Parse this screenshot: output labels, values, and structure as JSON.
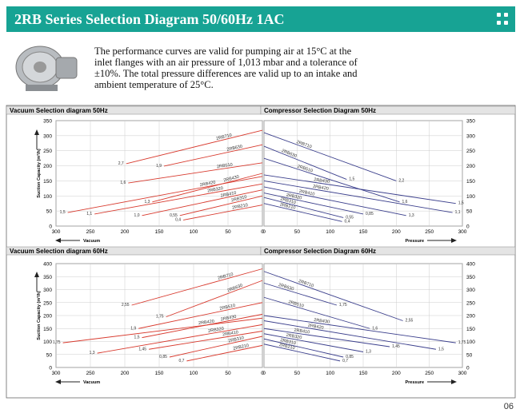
{
  "header": {
    "title": "2RB Series Selection Diagram 50/60Hz 1AC"
  },
  "intro": "The performance curves are valid for pumping air at 15°C at the inlet flanges with an air pressure of 1,013 mbar and a tolerance of ±10%. The total pressure differences are valid up to an intake and ambient temperature of 25°C.",
  "page_number": "06",
  "chart_data": [
    {
      "type": "line",
      "title": "Vacuum Selection diagram 50Hz",
      "ylabel": "Suction Capacity (m³/h)",
      "xlabel": "Vacuum",
      "color": "#d83a2e",
      "xlim": [
        300,
        0
      ],
      "ylim": [
        0,
        350
      ],
      "xticks": [
        300,
        250,
        200,
        150,
        100,
        50,
        0
      ],
      "yticks": [
        0,
        50,
        100,
        150,
        200,
        250,
        300,
        350
      ],
      "grid": true,
      "series": [
        {
          "name": "2RB710",
          "start_label": "2,7",
          "x": [
            198,
            0
          ],
          "values": [
            207,
            318
          ]
        },
        {
          "name": "2RB630",
          "start_label": "1,9",
          "x": [
            143,
            0
          ],
          "values": [
            199,
            270
          ]
        },
        {
          "name": "2RB510",
          "start_label": "1,6",
          "x": [
            195,
            0
          ],
          "values": [
            143,
            210
          ]
        },
        {
          "name": "2RB430",
          "start_label": "1,3",
          "x": [
            160,
            0
          ],
          "values": [
            80,
            175
          ]
        },
        {
          "name": "2RB420",
          "start_label": "1,5",
          "x": [
            283,
            0
          ],
          "values": [
            45,
            165
          ]
        },
        {
          "name": "2RB320",
          "start_label": "1,1",
          "x": [
            244,
            0
          ],
          "values": [
            40,
            140
          ]
        },
        {
          "name": "2RB410",
          "start_label": "1,0",
          "x": [
            175,
            0
          ],
          "values": [
            35,
            120
          ]
        },
        {
          "name": "2RB310",
          "start_label": "0,55",
          "x": [
            120,
            0
          ],
          "values": [
            35,
            100
          ]
        },
        {
          "name": "2RB210",
          "start_label": "0,4",
          "x": [
            115,
            0
          ],
          "values": [
            20,
            70
          ]
        }
      ]
    },
    {
      "type": "line",
      "title": "Compressor Selection Diagram 50Hz",
      "xlabel": "Pressure",
      "color": "#3b3f8c",
      "xlim": [
        0,
        300
      ],
      "ylim": [
        0,
        350
      ],
      "xticks": [
        0,
        50,
        100,
        150,
        200,
        250,
        300
      ],
      "yticks": [
        0,
        50,
        100,
        150,
        200,
        250,
        300,
        350
      ],
      "grid": true,
      "series": [
        {
          "name": "2RB710",
          "start_label": "2,2",
          "x": [
            0,
            200
          ],
          "values": [
            310,
            150
          ]
        },
        {
          "name": "2RB630",
          "start_label": "1,5",
          "x": [
            0,
            125
          ],
          "values": [
            265,
            155
          ]
        },
        {
          "name": "2RB510",
          "start_label": "1,6",
          "x": [
            0,
            205
          ],
          "values": [
            225,
            80
          ]
        },
        {
          "name": "2RB430",
          "start_label": "1,5",
          "x": [
            0,
            290
          ],
          "values": [
            170,
            75
          ]
        },
        {
          "name": "2RB420",
          "start_label": "1,1",
          "x": [
            0,
            285
          ],
          "values": [
            150,
            45
          ]
        },
        {
          "name": "2RB410",
          "start_label": "1,3",
          "x": [
            0,
            215
          ],
          "values": [
            130,
            35
          ]
        },
        {
          "name": "2RB320",
          "start_label": "0,85",
          "x": [
            0,
            150
          ],
          "values": [
            110,
            40
          ]
        },
        {
          "name": "2RB310",
          "start_label": "0,55",
          "x": [
            0,
            120
          ],
          "values": [
            95,
            28
          ]
        },
        {
          "name": "2RB210",
          "start_label": "0,4",
          "x": [
            0,
            118
          ],
          "values": [
            75,
            15
          ]
        }
      ]
    },
    {
      "type": "line",
      "title": "Vacuum Selection diagram 60Hz",
      "ylabel": "Suction Capacity (m³/h)",
      "xlabel": "Vacuum",
      "color": "#d83a2e",
      "xlim": [
        300,
        0
      ],
      "ylim": [
        0,
        400
      ],
      "xticks": [
        300,
        250,
        200,
        150,
        100,
        50,
        0
      ],
      "yticks": [
        0,
        50,
        100,
        150,
        200,
        250,
        300,
        350,
        400
      ],
      "grid": true,
      "series": [
        {
          "name": "2RB710",
          "start_label": "2,55",
          "x": [
            190,
            0
          ],
          "values": [
            240,
            380
          ]
        },
        {
          "name": "2RB630",
          "start_label": "1,75",
          "x": [
            140,
            0
          ],
          "values": [
            195,
            335
          ]
        },
        {
          "name": "2RB510",
          "start_label": "1,9",
          "x": [
            180,
            0
          ],
          "values": [
            150,
            250
          ]
        },
        {
          "name": "2RB430",
          "start_label": "1,5",
          "x": [
            175,
            0
          ],
          "values": [
            115,
            205
          ]
        },
        {
          "name": "2RB420",
          "start_label": "1,75",
          "x": [
            290,
            0
          ],
          "values": [
            95,
            190
          ]
        },
        {
          "name": "2RB320",
          "start_label": "1,3",
          "x": [
            240,
            0
          ],
          "values": [
            55,
            165
          ]
        },
        {
          "name": "2RB410",
          "start_label": "1,45",
          "x": [
            165,
            0
          ],
          "values": [
            70,
            140
          ]
        },
        {
          "name": "2RB310",
          "start_label": "0,85",
          "x": [
            135,
            0
          ],
          "values": [
            40,
            120
          ]
        },
        {
          "name": "2RB210",
          "start_label": "0,7",
          "x": [
            110,
            0
          ],
          "values": [
            25,
            85
          ]
        }
      ]
    },
    {
      "type": "line",
      "title": "Compressor Selection Diagram 60Hz",
      "xlabel": "Pressure",
      "color": "#3b3f8c",
      "xlim": [
        0,
        300
      ],
      "ylim": [
        0,
        400
      ],
      "xticks": [
        0,
        50,
        100,
        150,
        200,
        250,
        300
      ],
      "yticks": [
        0,
        50,
        100,
        150,
        200,
        250,
        300,
        350,
        400
      ],
      "grid": true,
      "series": [
        {
          "name": "2RB710",
          "start_label": "2,55",
          "x": [
            0,
            210
          ],
          "values": [
            370,
            180
          ]
        },
        {
          "name": "2RB630",
          "start_label": "1,75",
          "x": [
            0,
            110
          ],
          "values": [
            325,
            240
          ]
        },
        {
          "name": "2RB510",
          "start_label": "1,6",
          "x": [
            0,
            160
          ],
          "values": [
            270,
            150
          ]
        },
        {
          "name": "2RB430",
          "start_label": "1,75",
          "x": [
            0,
            290
          ],
          "values": [
            200,
            95
          ]
        },
        {
          "name": "2RB420",
          "start_label": "1,5",
          "x": [
            0,
            260
          ],
          "values": [
            180,
            70
          ]
        },
        {
          "name": "2RB410",
          "start_label": "1,45",
          "x": [
            0,
            190
          ],
          "values": [
            150,
            80
          ]
        },
        {
          "name": "2RB320",
          "start_label": "1,3",
          "x": [
            0,
            150
          ],
          "values": [
            130,
            60
          ]
        },
        {
          "name": "2RB310",
          "start_label": "0,85",
          "x": [
            0,
            120
          ],
          "values": [
            110,
            40
          ]
        },
        {
          "name": "2RB210",
          "start_label": "0,7",
          "x": [
            0,
            115
          ],
          "values": [
            90,
            25
          ]
        }
      ]
    }
  ]
}
